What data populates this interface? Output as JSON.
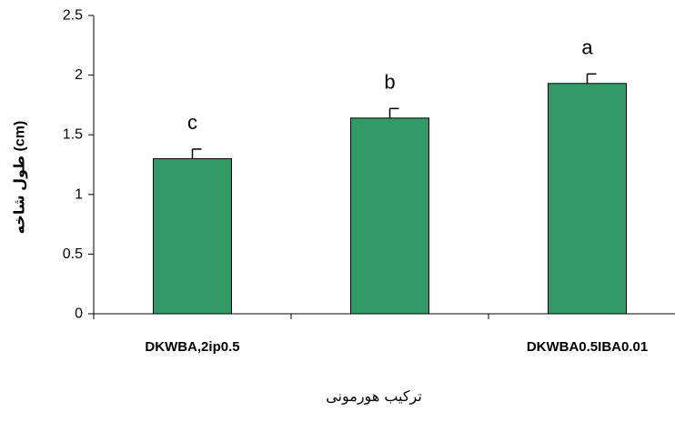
{
  "chart_data": {
    "type": "bar",
    "categories": [
      "DKWBA,2ip0.5",
      "",
      "DKWBA0.5IBA0.01"
    ],
    "values": [
      1.3,
      1.64,
      1.93
    ],
    "errors": [
      0.08,
      0.08,
      0.08
    ],
    "significance": [
      "c",
      "b",
      "a"
    ],
    "ylabel": "طول شاخه (cm)",
    "xlabel": "ترکیب هورمونی",
    "ylim": [
      0,
      2.5
    ],
    "yticks": [
      "0",
      "0.5",
      "1",
      "1.5",
      "2",
      "2.5"
    ],
    "grid": false,
    "legend": "none",
    "bar_color": "#339966"
  }
}
